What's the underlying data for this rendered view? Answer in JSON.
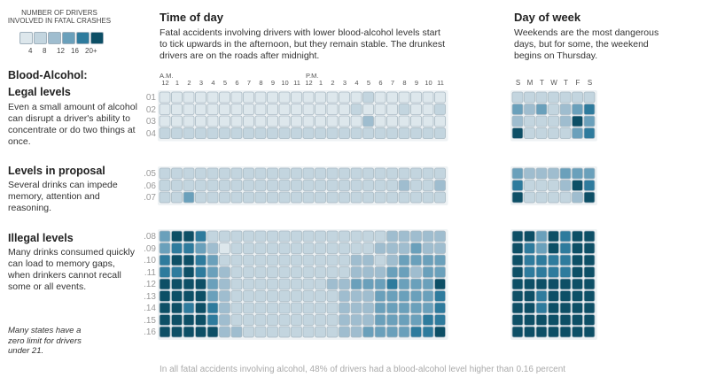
{
  "legend": {
    "title": "Number of drivers involved in fatal crashes",
    "labels": [
      "4",
      "8",
      "12",
      "16",
      "20+"
    ],
    "colors": [
      "#dde7ec",
      "#c3d5df",
      "#9fbdcf",
      "#6aa0bb",
      "#2e7b9d",
      "#0d4f66"
    ]
  },
  "time_of_day": {
    "heading": "Time of day",
    "text": "Fatal accidents involving drivers with lower blood-alcohol levels start to tick upwards in the afternoon, but they remain stable. The drunkest drivers are on the roads after midnight.",
    "am_label": "A.M.",
    "pm_label": "P.M.",
    "hours": [
      "12",
      "1",
      "2",
      "3",
      "4",
      "5",
      "6",
      "7",
      "8",
      "9",
      "10",
      "11",
      "12",
      "1",
      "2",
      "3",
      "4",
      "5",
      "6",
      "7",
      "8",
      "9",
      "10",
      "11"
    ]
  },
  "day_of_week": {
    "heading": "Day of week",
    "text": "Weekends are the most dangerous days, but for some, the weekend begins on Thursday.",
    "days": [
      "S",
      "M",
      "T",
      "W",
      "T",
      "F",
      "S"
    ]
  },
  "sidebar": {
    "title": "Blood-Alcohol:",
    "sections": [
      {
        "heading": "Legal levels",
        "text": "Even a small amount of alcohol can disrupt a driver's ability to concentrate or do two things at once."
      },
      {
        "heading": "Levels in proposal",
        "text": "Several drinks can impede memory, attention and reasoning."
      },
      {
        "heading": "Illegal levels",
        "text": "Many drinks consumed quickly can load to memory gaps, when drinkers cannot recall some or all events."
      }
    ],
    "note": "Many states have a zero limit for drivers under 21."
  },
  "footer": "In all fatal accidents involving alcohol, 48% of drivers had a blood-alcohol level higher than 0.16 percent",
  "chart_data": {
    "type": "heatmap",
    "scale": "0-5 color bins; 0 = fewest drivers, 5 = 20+ drivers",
    "groups": [
      {
        "name": "Legal levels",
        "rows": [
          "01",
          "02",
          "03",
          "04"
        ]
      },
      {
        "name": "Levels in proposal",
        "rows": [
          ".05",
          ".06",
          ".07"
        ]
      },
      {
        "name": "Illegal levels",
        "rows": [
          ".08",
          ".09",
          ".10",
          ".11",
          ".12",
          ".13",
          ".14",
          ".15",
          ".16"
        ]
      }
    ],
    "hour_values": [
      [
        0,
        0,
        0,
        0,
        0,
        0,
        0,
        0,
        0,
        0,
        0,
        0,
        0,
        0,
        0,
        0,
        0,
        1,
        0,
        0,
        0,
        0,
        0,
        0
      ],
      [
        0,
        0,
        0,
        0,
        0,
        0,
        0,
        0,
        0,
        0,
        0,
        0,
        0,
        0,
        0,
        0,
        1,
        0,
        0,
        0,
        1,
        0,
        0,
        1
      ],
      [
        0,
        0,
        0,
        0,
        0,
        0,
        0,
        0,
        0,
        0,
        0,
        0,
        0,
        0,
        0,
        0,
        0,
        2,
        0,
        0,
        0,
        0,
        0,
        0
      ],
      [
        1,
        1,
        1,
        1,
        1,
        1,
        1,
        1,
        1,
        1,
        1,
        1,
        1,
        1,
        1,
        1,
        1,
        1,
        1,
        1,
        1,
        1,
        1,
        1
      ],
      [
        1,
        1,
        1,
        1,
        1,
        1,
        1,
        1,
        1,
        1,
        1,
        1,
        1,
        1,
        1,
        1,
        1,
        1,
        1,
        1,
        1,
        1,
        1,
        1
      ],
      [
        1,
        1,
        1,
        1,
        1,
        1,
        1,
        1,
        1,
        1,
        1,
        1,
        1,
        1,
        1,
        1,
        1,
        1,
        1,
        1,
        2,
        1,
        1,
        2
      ],
      [
        1,
        1,
        3,
        1,
        1,
        1,
        1,
        1,
        1,
        1,
        1,
        1,
        1,
        1,
        1,
        1,
        1,
        1,
        1,
        1,
        1,
        1,
        1,
        1
      ],
      [
        3,
        5,
        5,
        4,
        1,
        1,
        1,
        1,
        1,
        1,
        1,
        1,
        1,
        1,
        1,
        1,
        1,
        1,
        1,
        2,
        2,
        2,
        2,
        2
      ],
      [
        3,
        4,
        4,
        3,
        2,
        0,
        1,
        1,
        1,
        1,
        1,
        1,
        1,
        1,
        1,
        1,
        1,
        1,
        2,
        2,
        2,
        3,
        2,
        2
      ],
      [
        4,
        5,
        5,
        4,
        3,
        1,
        1,
        1,
        1,
        1,
        1,
        1,
        1,
        1,
        1,
        1,
        2,
        2,
        1,
        2,
        3,
        3,
        3,
        3
      ],
      [
        4,
        4,
        5,
        4,
        3,
        2,
        1,
        1,
        1,
        1,
        1,
        1,
        1,
        1,
        1,
        1,
        2,
        2,
        2,
        3,
        3,
        2,
        3,
        3
      ],
      [
        5,
        5,
        5,
        5,
        3,
        2,
        1,
        1,
        1,
        1,
        1,
        1,
        1,
        1,
        2,
        2,
        3,
        3,
        3,
        4,
        3,
        3,
        3,
        5
      ],
      [
        5,
        5,
        5,
        5,
        3,
        2,
        1,
        1,
        1,
        1,
        1,
        1,
        1,
        1,
        1,
        2,
        2,
        2,
        3,
        3,
        3,
        3,
        3,
        4
      ],
      [
        5,
        5,
        4,
        5,
        4,
        2,
        1,
        1,
        1,
        1,
        1,
        1,
        1,
        1,
        1,
        2,
        2,
        2,
        3,
        3,
        3,
        3,
        3,
        4
      ],
      [
        5,
        5,
        5,
        5,
        4,
        2,
        1,
        1,
        1,
        1,
        1,
        1,
        1,
        1,
        1,
        2,
        2,
        2,
        3,
        3,
        3,
        3,
        4,
        4
      ],
      [
        5,
        5,
        5,
        5,
        5,
        2,
        2,
        1,
        1,
        1,
        1,
        1,
        1,
        1,
        1,
        2,
        2,
        3,
        3,
        3,
        3,
        4,
        4,
        5
      ]
    ],
    "day_values": [
      [
        1,
        1,
        1,
        1,
        1,
        1,
        1
      ],
      [
        3,
        2,
        3,
        1,
        2,
        3,
        4
      ],
      [
        2,
        1,
        1,
        1,
        2,
        5,
        3
      ],
      [
        5,
        1,
        1,
        1,
        1,
        3,
        4
      ],
      [
        3,
        2,
        2,
        2,
        3,
        3,
        3
      ],
      [
        4,
        1,
        1,
        1,
        2,
        5,
        4
      ],
      [
        5,
        1,
        1,
        1,
        1,
        2,
        5
      ],
      [
        5,
        5,
        3,
        5,
        4,
        5,
        5
      ],
      [
        5,
        4,
        3,
        5,
        4,
        5,
        5
      ],
      [
        5,
        4,
        4,
        4,
        4,
        5,
        5
      ],
      [
        5,
        4,
        4,
        4,
        4,
        5,
        5
      ],
      [
        5,
        5,
        5,
        5,
        5,
        5,
        5
      ],
      [
        5,
        5,
        4,
        5,
        5,
        5,
        5
      ],
      [
        5,
        5,
        4,
        5,
        5,
        5,
        5
      ],
      [
        5,
        5,
        5,
        5,
        5,
        5,
        5
      ],
      [
        5,
        5,
        5,
        5,
        5,
        5,
        5
      ]
    ]
  }
}
